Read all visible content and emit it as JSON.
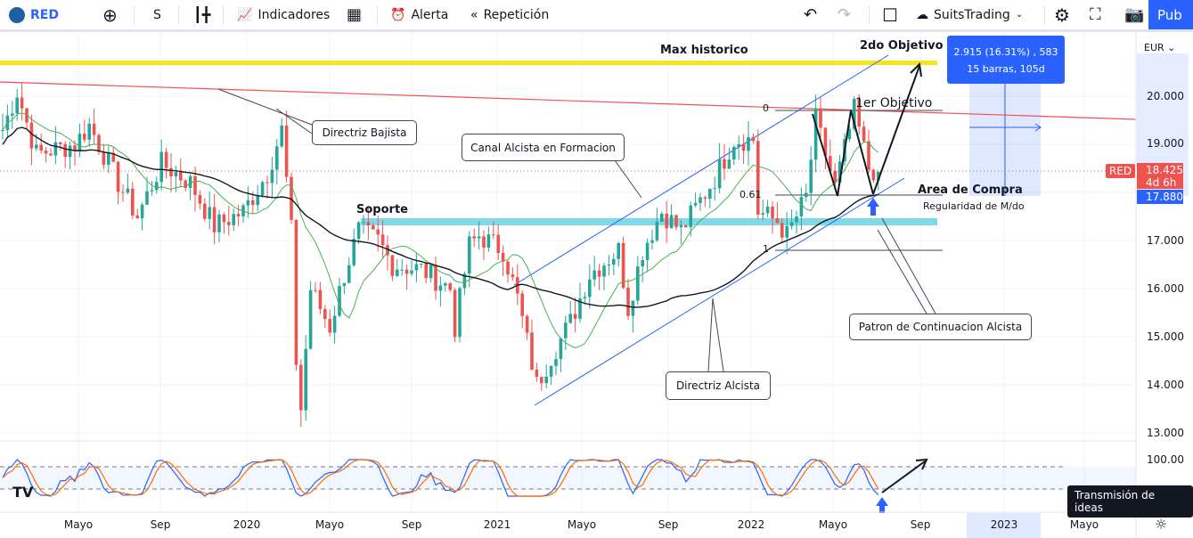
{
  "toolbar": {
    "symbol": "RED",
    "interval": "S",
    "indicators": "Indicadores",
    "alert": "Alerta",
    "replay": "Repetición",
    "account": "SuitsTrading",
    "publish": "Pub"
  },
  "colors": {
    "up": "#26a69a",
    "down": "#ef5350",
    "accent": "#2962ff",
    "ma_fast": "#4caf50",
    "ma_slow": "#131722"
  },
  "annotations": {
    "max_historico": "Max historico",
    "segundo_objetivo": "2do Objetivo",
    "primer_objetivo": "1er Objetivo",
    "directriz_bajista": "Directriz Bajista",
    "canal": "Canal Alcista en Formacion",
    "soporte": "Soporte",
    "area_compra": "Area de Compra",
    "regularidad": "Regularidad de M/do",
    "patron": "Patron de Continuacion Alcista",
    "directriz_alcista": "Directriz Alcista",
    "fib_0": "0",
    "fib_061": "0.61",
    "fib_1": "1"
  },
  "measure": {
    "line1": "2.915 (16.31%) , 583",
    "line2": "15 barras, 105d"
  },
  "price_axis": {
    "currency": "EUR",
    "ticks": [
      "20.000",
      "19.000",
      "17.000",
      "16.000",
      "15.000",
      "14.000",
      "13.000"
    ],
    "symbol_tag": "RED",
    "last_price": "18.425",
    "countdown": "4d 6h",
    "measure_price": "17.880",
    "osc_tick": "100.00"
  },
  "time_axis": [
    "Mayo",
    "Sep",
    "2020",
    "Mayo",
    "Sep",
    "2021",
    "Mayo",
    "Sep",
    "2022",
    "Mayo",
    "Sep",
    "2023",
    "Mayo"
  ],
  "tooltip": "Transmisión de ideas",
  "chart_data": {
    "type": "candlestick",
    "ylim": [
      13,
      20.5
    ],
    "key_points": [
      [
        0,
        19.3
      ],
      [
        3,
        20.1
      ],
      [
        7,
        18.8
      ],
      [
        15,
        19.0
      ],
      [
        18,
        19.4
      ],
      [
        24,
        18.2
      ],
      [
        28,
        17.5
      ],
      [
        33,
        18.6
      ],
      [
        39,
        18.2
      ],
      [
        44,
        17.3
      ],
      [
        50,
        17.6
      ],
      [
        55,
        18.4
      ],
      [
        58,
        19.3
      ],
      [
        60,
        17.2
      ],
      [
        61,
        14.5
      ],
      [
        62,
        13.5
      ],
      [
        64,
        16.0
      ],
      [
        68,
        15.2
      ],
      [
        71,
        16.3
      ],
      [
        74,
        17.2
      ],
      [
        78,
        17.0
      ],
      [
        81,
        16.5
      ],
      [
        87,
        16.4
      ],
      [
        93,
        16.0
      ],
      [
        94,
        15.2
      ],
      [
        97,
        16.9
      ],
      [
        99,
        17.1
      ],
      [
        104,
        16.8
      ],
      [
        107,
        15.8
      ],
      [
        111,
        14.0
      ],
      [
        114,
        14.6
      ],
      [
        118,
        15.3
      ],
      [
        122,
        16.3
      ],
      [
        128,
        16.8
      ],
      [
        130,
        15.6
      ],
      [
        133,
        16.8
      ],
      [
        137,
        17.6
      ],
      [
        141,
        17.2
      ],
      [
        148,
        18.3
      ],
      [
        152,
        19.1
      ],
      [
        156,
        19.1
      ],
      [
        157,
        17.6
      ],
      [
        161,
        17.4
      ],
      [
        163,
        17.1
      ],
      [
        167,
        17.9
      ],
      [
        169,
        19.5
      ],
      [
        173,
        18.1
      ],
      [
        177,
        19.7
      ],
      [
        180,
        18.5
      ],
      [
        182,
        18.425
      ]
    ]
  }
}
